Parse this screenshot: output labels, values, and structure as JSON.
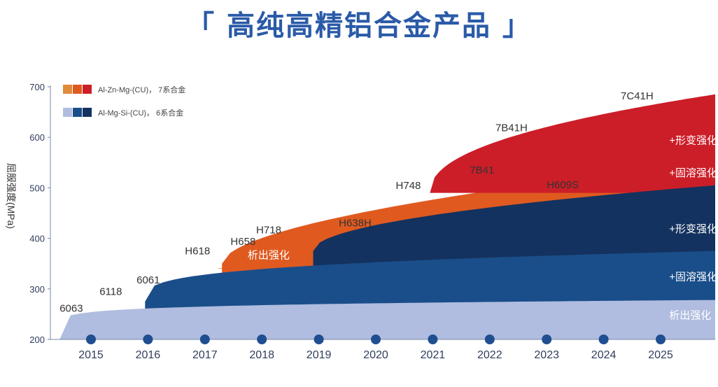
{
  "title": "「 高纯高精铝合金产品 」",
  "chart_data": {
    "type": "area",
    "title": "「 高纯高精铝合金产品 」",
    "ylabel": "屈服强度(MPa)",
    "xlabel": "",
    "ylim": [
      200,
      700
    ],
    "yticks": [
      "200",
      "300",
      "400",
      "500",
      "600",
      "700"
    ],
    "categories": [
      "2015",
      "2016",
      "2017",
      "2018",
      "2019",
      "2020",
      "2021",
      "2022",
      "2023",
      "2024",
      "2025"
    ],
    "legend": [
      {
        "label": "Al-Zn-Mg-(CU)， 7系合金",
        "colors": [
          "#e08a3a",
          "#e05a20",
          "#cc1e28"
        ]
      },
      {
        "label": "Al-Mg-Si-(CU)， 6系合金",
        "colors": [
          "#b0bde0",
          "#1a4e8a",
          "#14325f"
        ]
      }
    ],
    "series": [
      {
        "name": "6系 析出强化",
        "color": "#b0bde0"
      },
      {
        "name": "6系 固溶强化",
        "color": "#1a4e8a"
      },
      {
        "name": "6系 形变强化",
        "color": "#14325f"
      },
      {
        "name": "7系 析出强化",
        "color": "#e08a3a"
      },
      {
        "name": "7系 固溶强化",
        "color": "#e05a20"
      },
      {
        "name": "7系 形变强化",
        "color": "#cc1e28"
      }
    ],
    "data_labels": [
      {
        "text": "6063",
        "year": 2014.45,
        "y": 255,
        "white": false
      },
      {
        "text": "6118",
        "year": 2015.15,
        "y": 288,
        "white": false
      },
      {
        "text": "6061",
        "year": 2015.8,
        "y": 311,
        "white": false
      },
      {
        "text": "H618",
        "year": 2016.65,
        "y": 368,
        "white": false
      },
      {
        "text": "H658",
        "year": 2017.45,
        "y": 387,
        "white": false
      },
      {
        "text": "H718",
        "year": 2017.9,
        "y": 410,
        "white": false
      },
      {
        "text": "H638H",
        "year": 2019.35,
        "y": 424,
        "white": false
      },
      {
        "text": "H748",
        "year": 2020.35,
        "y": 498,
        "white": false
      },
      {
        "text": "7B41",
        "year": 2021.65,
        "y": 528,
        "white": false
      },
      {
        "text": "7B41H",
        "year": 2022.1,
        "y": 612,
        "white": false
      },
      {
        "text": "7C41H",
        "year": 2024.3,
        "y": 675,
        "white": false
      },
      {
        "text": "H609S",
        "year": 2023.0,
        "y": 499,
        "white": false
      },
      {
        "text": "析出强化",
        "year": 2017.75,
        "y": 360,
        "white": true
      },
      {
        "text": "+形变强化",
        "year": 2025.15,
        "y": 587,
        "white": true
      },
      {
        "text": "+固溶强化",
        "year": 2025.15,
        "y": 523,
        "white": true
      },
      {
        "text": "+形变强化",
        "year": 2025.15,
        "y": 412,
        "white": true
      },
      {
        "text": "+固溶强化",
        "year": 2025.15,
        "y": 317,
        "white": true
      },
      {
        "text": "析出强化",
        "year": 2025.15,
        "y": 241,
        "white": true
      }
    ]
  }
}
